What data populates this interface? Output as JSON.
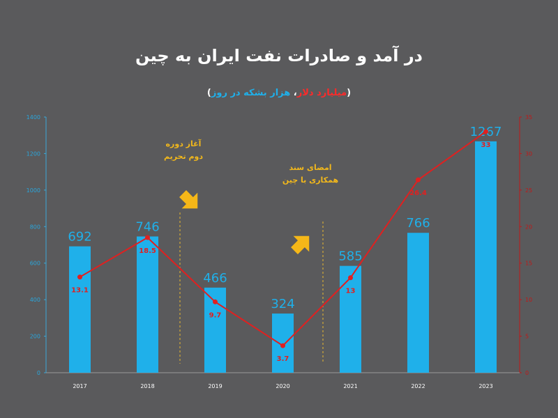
{
  "title": "در آمد و صادرات نفت ایران به چین",
  "subtitle": {
    "open": "(",
    "red_part": "میلیارد دلار",
    "sep": "، ",
    "blue_part": "هزار بشکه در روز",
    "close": ")"
  },
  "annotations": {
    "a1_line1": "آغاز دوره",
    "a1_line2": "دوم تحریم",
    "a2_line1": "امضای سند",
    "a2_line2": "همکاری با چین"
  },
  "colors": {
    "bar": "#1fb0ea",
    "line": "#e02020",
    "title": "#ffffff",
    "annotation": "#f2b81b",
    "background": "#5a5a5c"
  },
  "chart_data": {
    "type": "bar",
    "categories": [
      "2017",
      "2018",
      "2019",
      "2020",
      "2021",
      "2022",
      "2023"
    ],
    "series": [
      {
        "name": "هزار بشکه در روز",
        "type": "bar",
        "axis": "left",
        "values": [
          692,
          746,
          466,
          324,
          585,
          766,
          1267
        ]
      },
      {
        "name": "میلیارد دلار",
        "type": "line",
        "axis": "right",
        "values": [
          13.1,
          18.5,
          9.7,
          3.7,
          13,
          26.4,
          33
        ]
      }
    ],
    "y_left": {
      "ylim": [
        0,
        1400
      ],
      "ticks": [
        "0",
        "200",
        "400",
        "600",
        "800",
        "1000",
        "1200",
        "1400"
      ]
    },
    "y_right": {
      "ylim": [
        0,
        35
      ],
      "ticks": [
        "0",
        "5",
        "10",
        "15",
        "20",
        "25",
        "30",
        "35"
      ]
    },
    "grid": false
  }
}
